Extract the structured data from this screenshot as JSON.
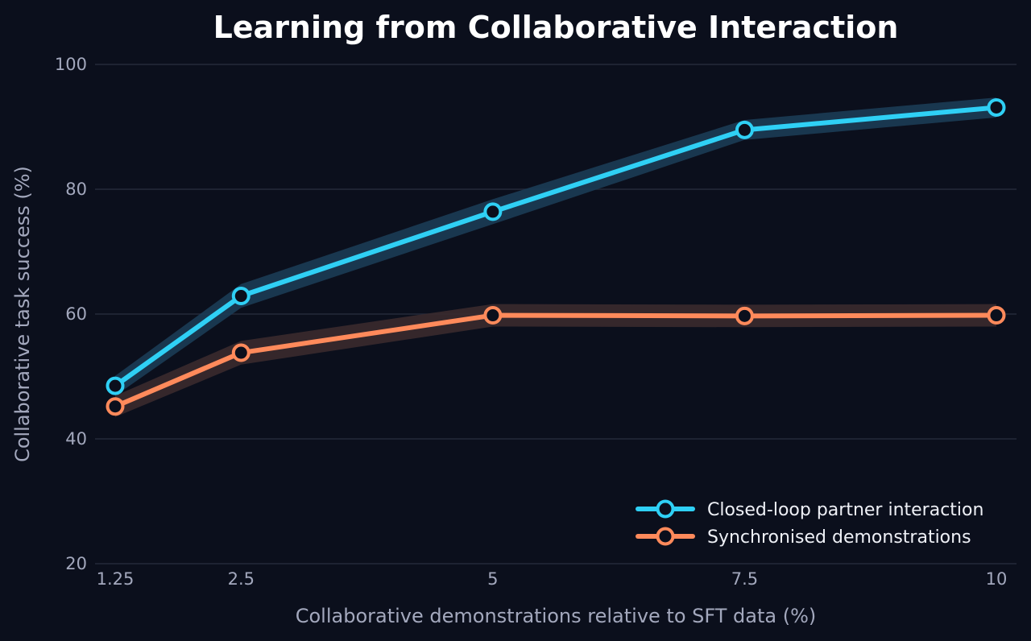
{
  "chart_data": {
    "type": "line",
    "title": "Learning from Collaborative Interaction",
    "xlabel": "Collaborative demonstrations relative to SFT data (%)",
    "ylabel": "Collaborative task success (%)",
    "x": [
      1.25,
      2.5,
      5,
      7.5,
      10
    ],
    "x_tick_labels": [
      "1.25",
      "2.5",
      "5",
      "7.5",
      "10"
    ],
    "y_ticks": [
      20,
      40,
      60,
      80,
      100
    ],
    "ylim": [
      20,
      100
    ],
    "grid": true,
    "legend_position": "bottom-right",
    "series": [
      {
        "name": "Closed-loop partner interaction",
        "color": "#2fd0f5",
        "band_color": "#1b3c55",
        "values": [
          48.5,
          62.9,
          76.4,
          89.5,
          93.1
        ],
        "band_halfwidth": [
          1.6,
          1.9,
          2.0,
          1.6,
          1.6
        ]
      },
      {
        "name": "Synchronised demonstrations",
        "color": "#ff8a5b",
        "band_color": "#3a2a2e",
        "values": [
          45.2,
          53.8,
          59.8,
          59.7,
          59.8
        ],
        "band_halfwidth": [
          1.7,
          1.9,
          1.8,
          1.8,
          1.8
        ]
      }
    ]
  }
}
